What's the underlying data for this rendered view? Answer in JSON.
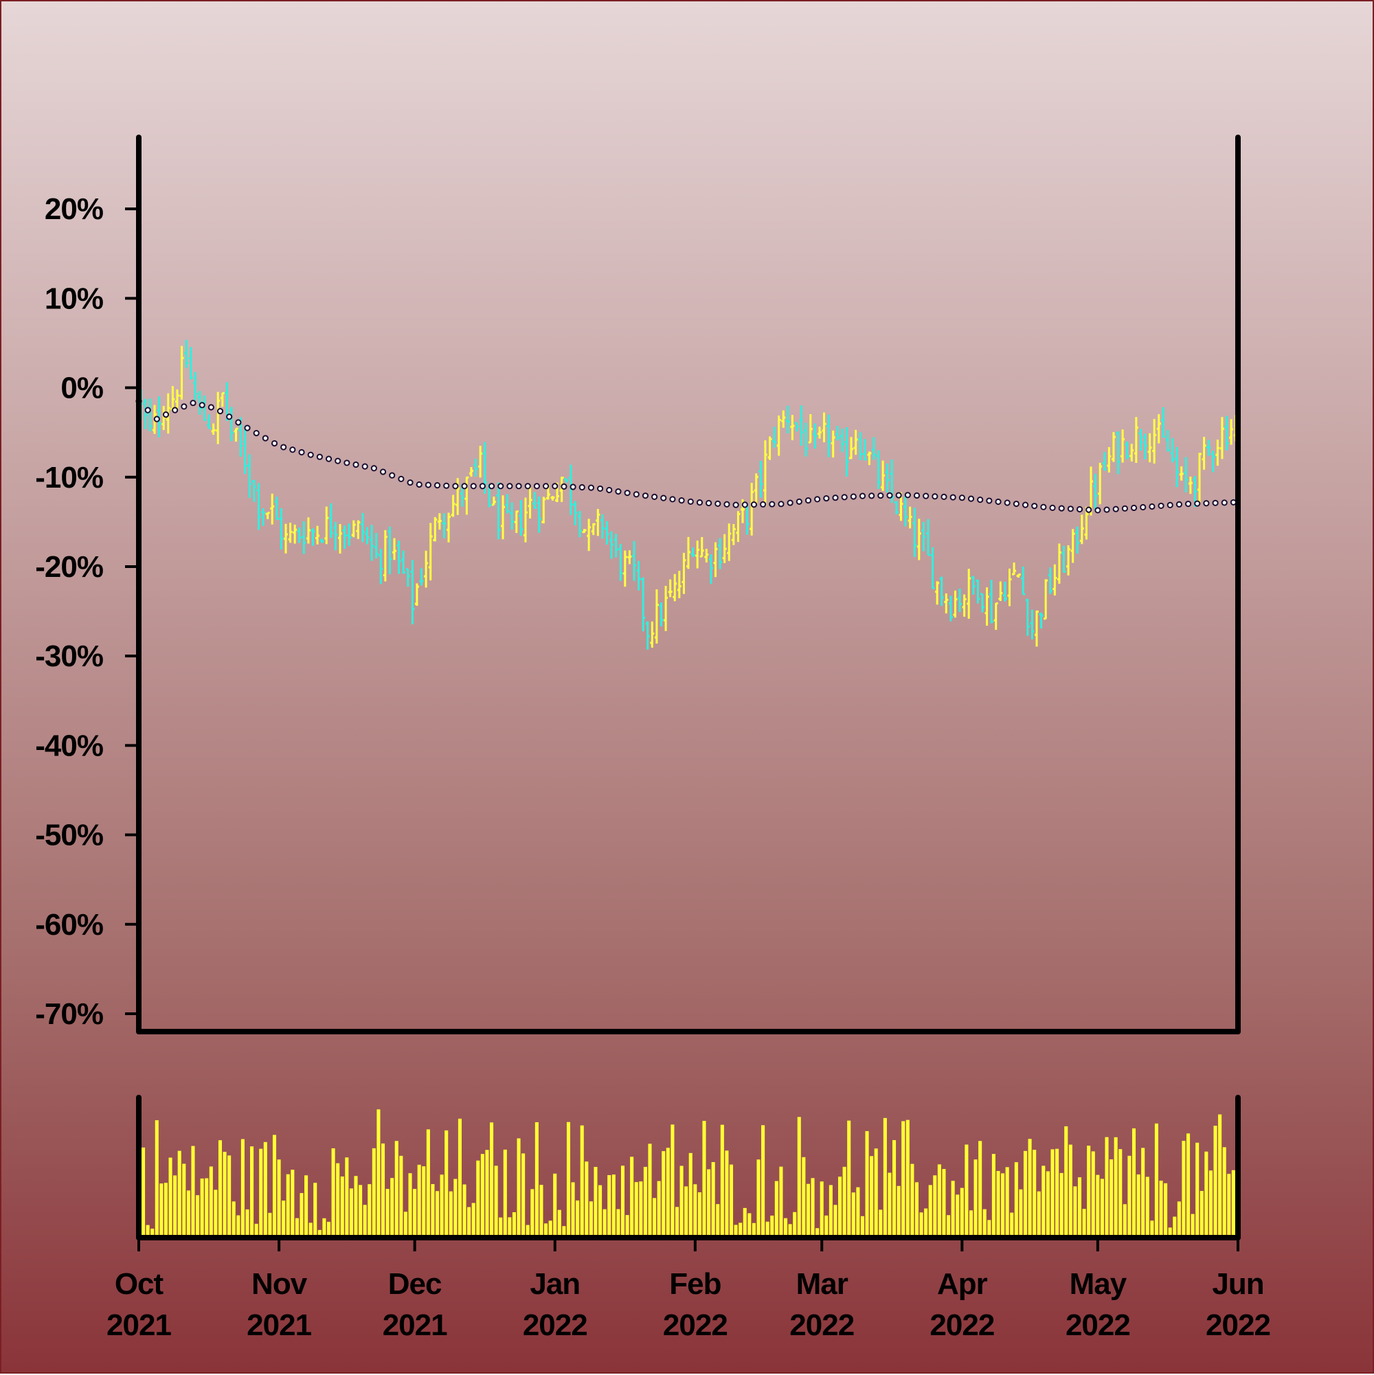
{
  "chart_data": [
    {
      "type": "ohlc",
      "title": "",
      "xlabel": "",
      "ylabel": "",
      "y_unit": "%",
      "ylim": [
        -72,
        28
      ],
      "y_ticks": [
        20,
        10,
        0,
        -10,
        -20,
        -30,
        -40,
        -50,
        -60,
        -70
      ],
      "y_tick_labels": [
        "20%",
        "10%",
        "0%",
        "-10%",
        "-20%",
        "-30%",
        "-40%",
        "-50%",
        "-60%",
        "-70%"
      ],
      "x_range": [
        "2021-10-01",
        "2022-06-01"
      ],
      "x_ticks": [
        "2021-10-01",
        "2021-11-01",
        "2021-12-01",
        "2022-01-01",
        "2022-02-01",
        "2022-03-01",
        "2022-04-01",
        "2022-05-01",
        "2022-06-01"
      ],
      "x_tick_labels": [
        [
          "Oct",
          "2021"
        ],
        [
          "Nov",
          "2021"
        ],
        [
          "Dec",
          "2021"
        ],
        [
          "Jan",
          "2022"
        ],
        [
          "Feb",
          "2022"
        ],
        [
          "Mar",
          "2022"
        ],
        [
          "Apr",
          "2022"
        ],
        [
          "May",
          "2022"
        ],
        [
          "Jun",
          "2022"
        ]
      ],
      "up_color": "#ffff44",
      "down_color": "#33eedd",
      "close_path": [
        [
          "2021-10-01",
          -1
        ],
        [
          "2021-10-04",
          -5
        ],
        [
          "2021-10-07",
          -2
        ],
        [
          "2021-10-09",
          -1
        ],
        [
          "2021-10-12",
          3
        ],
        [
          "2021-10-15",
          -3
        ],
        [
          "2021-10-18",
          -4
        ],
        [
          "2021-10-20",
          -1
        ],
        [
          "2021-10-22",
          -5
        ],
        [
          "2021-10-25",
          -8
        ],
        [
          "2021-10-28",
          -13
        ],
        [
          "2021-10-31",
          -14
        ],
        [
          "2021-11-03",
          -17
        ],
        [
          "2021-11-07",
          -16
        ],
        [
          "2021-11-10",
          -16
        ],
        [
          "2021-11-14",
          -15
        ],
        [
          "2021-11-17",
          -16
        ],
        [
          "2021-11-20",
          -16
        ],
        [
          "2021-11-23",
          -19
        ],
        [
          "2021-11-26",
          -18
        ],
        [
          "2021-11-29",
          -21
        ],
        [
          "2021-12-01",
          -24
        ],
        [
          "2021-12-04",
          -19
        ],
        [
          "2021-12-07",
          -14
        ],
        [
          "2021-12-10",
          -13
        ],
        [
          "2021-12-13",
          -11
        ],
        [
          "2021-12-16",
          -9
        ],
        [
          "2021-12-19",
          -14
        ],
        [
          "2021-12-23",
          -16
        ],
        [
          "2021-12-27",
          -13
        ],
        [
          "2021-12-30",
          -13
        ],
        [
          "2022-01-03",
          -10
        ],
        [
          "2022-01-06",
          -13
        ],
        [
          "2022-01-09",
          -17
        ],
        [
          "2022-01-12",
          -15
        ],
        [
          "2022-01-15",
          -19
        ],
        [
          "2022-01-19",
          -21
        ],
        [
          "2022-01-22",
          -27
        ],
        [
          "2022-01-25",
          -25
        ],
        [
          "2022-01-29",
          -22
        ],
        [
          "2022-02-01",
          -17
        ],
        [
          "2022-02-04",
          -19
        ],
        [
          "2022-02-07",
          -18
        ],
        [
          "2022-02-10",
          -16
        ],
        [
          "2022-02-13",
          -14
        ],
        [
          "2022-02-16",
          -10
        ],
        [
          "2022-02-19",
          -5
        ],
        [
          "2022-02-22",
          -3
        ],
        [
          "2022-02-25",
          -5
        ],
        [
          "2022-02-28",
          -7
        ],
        [
          "2022-03-03",
          -5
        ],
        [
          "2022-03-06",
          -8
        ],
        [
          "2022-03-09",
          -5
        ],
        [
          "2022-03-12",
          -8
        ],
        [
          "2022-03-15",
          -11
        ],
        [
          "2022-03-18",
          -13
        ],
        [
          "2022-03-21",
          -16
        ],
        [
          "2022-03-24",
          -18
        ],
        [
          "2022-03-27",
          -22
        ],
        [
          "2022-03-30",
          -24
        ],
        [
          "2022-04-02",
          -23
        ],
        [
          "2022-04-05",
          -22
        ],
        [
          "2022-04-08",
          -25
        ],
        [
          "2022-04-11",
          -22
        ],
        [
          "2022-04-14",
          -21
        ],
        [
          "2022-04-17",
          -27
        ],
        [
          "2022-04-20",
          -23
        ],
        [
          "2022-04-23",
          -20
        ],
        [
          "2022-04-26",
          -18
        ],
        [
          "2022-04-29",
          -13
        ],
        [
          "2022-05-02",
          -10
        ],
        [
          "2022-05-05",
          -7
        ],
        [
          "2022-05-08",
          -6
        ],
        [
          "2022-05-11",
          -5
        ],
        [
          "2022-05-14",
          -5
        ],
        [
          "2022-05-17",
          -7
        ],
        [
          "2022-05-20",
          -11
        ],
        [
          "2022-05-23",
          -10
        ],
        [
          "2022-05-26",
          -7
        ],
        [
          "2022-05-29",
          -5
        ],
        [
          "2022-06-01",
          -4
        ]
      ],
      "moving_average": [
        [
          "2021-10-01",
          -1.5
        ],
        [
          "2021-10-05",
          -3.5
        ],
        [
          "2021-10-09",
          -2.5
        ],
        [
          "2021-10-13",
          -1.7
        ],
        [
          "2021-10-18",
          -2.3
        ],
        [
          "2021-10-25",
          -4.5
        ],
        [
          "2021-11-01",
          -6.5
        ],
        [
          "2021-11-08",
          -7.5
        ],
        [
          "2021-11-15",
          -8.3
        ],
        [
          "2021-11-22",
          -9
        ],
        [
          "2021-12-01",
          -10.8
        ],
        [
          "2021-12-10",
          -11
        ],
        [
          "2021-12-20",
          -11
        ],
        [
          "2022-01-01",
          -11
        ],
        [
          "2022-01-10",
          -11.2
        ],
        [
          "2022-01-20",
          -12
        ],
        [
          "2022-02-01",
          -12.8
        ],
        [
          "2022-02-10",
          -13.1
        ],
        [
          "2022-02-20",
          -13
        ],
        [
          "2022-03-01",
          -12.4
        ],
        [
          "2022-03-10",
          -12.1
        ],
        [
          "2022-03-20",
          -12
        ],
        [
          "2022-04-01",
          -12.3
        ],
        [
          "2022-04-10",
          -12.8
        ],
        [
          "2022-04-20",
          -13.4
        ],
        [
          "2022-05-01",
          -13.7
        ],
        [
          "2022-05-10",
          -13.4
        ],
        [
          "2022-05-20",
          -13
        ],
        [
          "2022-06-01",
          -12.8
        ]
      ],
      "grid": false,
      "legend": "none"
    },
    {
      "type": "bar",
      "title": "",
      "series": [
        {
          "name": "",
          "description_of_values": "daily volume (relative)"
        }
      ],
      "y_axis": "none",
      "bar_color": "#ffff33",
      "x_range": [
        "2021-10-01",
        "2022-06-01"
      ],
      "value_range": [
        0.05,
        1.0
      ]
    }
  ]
}
